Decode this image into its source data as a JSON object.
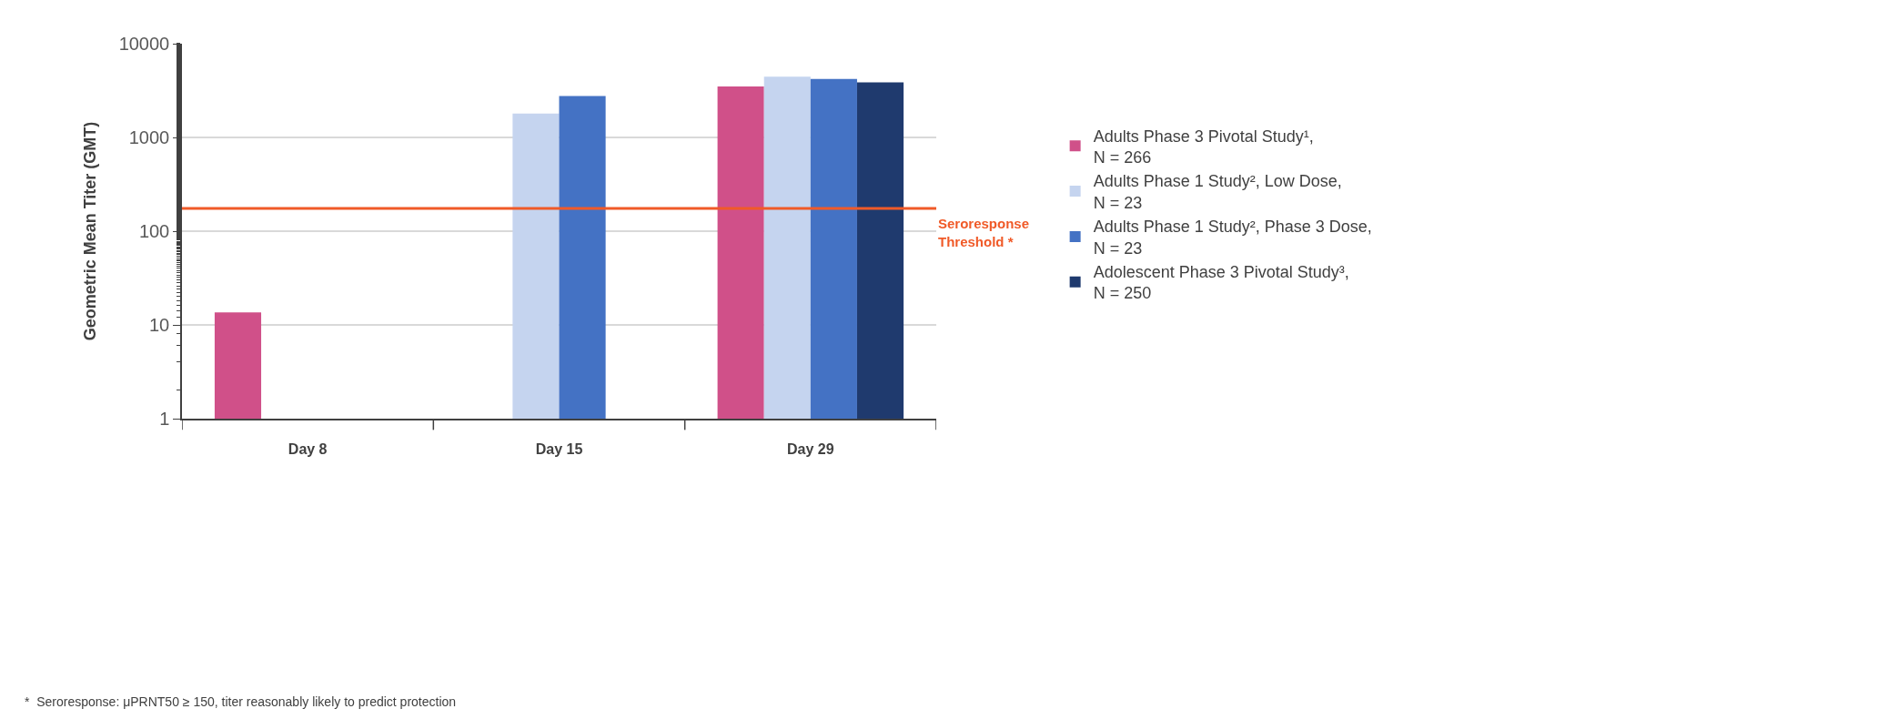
{
  "chart_data": {
    "type": "bar",
    "ylabel": "Geometric Mean Titer (GMT)",
    "categories": [
      "Day 8",
      "Day 15",
      "Day 29"
    ],
    "series": [
      {
        "name": "Adults Phase 3 Pivotal Study¹, N = 266",
        "color": "#d05089",
        "values": [
          13.6,
          null,
          3490
        ]
      },
      {
        "name": "Adults Phase 1 Study², Low Dose, N = 23",
        "color": "#c5d4ef",
        "values": [
          null,
          1800,
          4450
        ]
      },
      {
        "name": "Adults Phase 1 Study², Phase 3 Dose, N = 23",
        "color": "#4472c4",
        "values": [
          null,
          2760,
          4200
        ]
      },
      {
        "name": "Adolescent Phase 3 Pivotal Study³, N = 250",
        "color": "#1f3a6e",
        "values": [
          null,
          null,
          3870
        ]
      }
    ],
    "log": "y",
    "ylim": [
      1,
      10000
    ],
    "yticks": [
      1,
      10,
      100,
      1000,
      10000
    ],
    "grid": "y",
    "legend": "right",
    "ref_lines": [
      {
        "axis": "y",
        "value": 175,
        "label": "Seroresponse Threshold *",
        "color": "#f05a28"
      }
    ],
    "annotations": [
      "*  Seroresponse: μPRNT50 ≥ 150, titer reasonably likely to predict protection"
    ]
  }
}
